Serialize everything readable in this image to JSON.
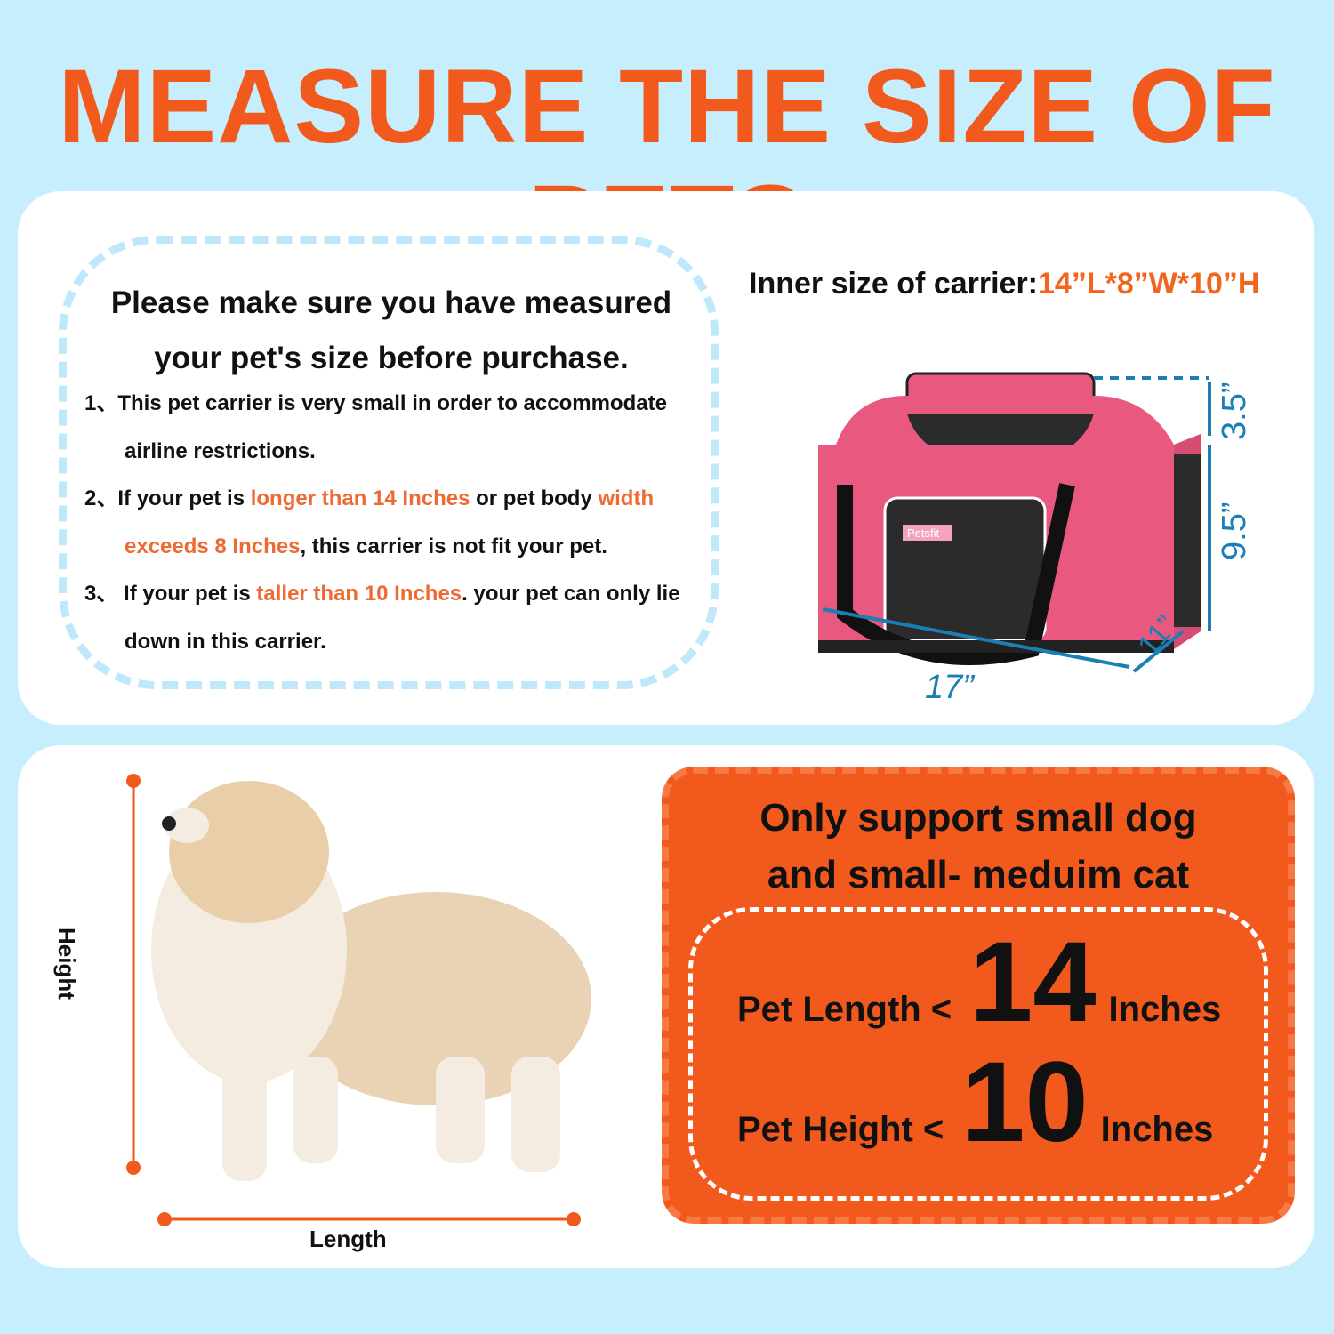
{
  "title": "MEASURE THE SIZE OF PETS",
  "notice": {
    "heading_line1": "Please make sure you have measured",
    "heading_line2": "your pet's size before purchase.",
    "items": [
      {
        "num": "1、",
        "a": "This pet carrier is very small in order  to accommodate",
        "b": "airline restrictions."
      },
      {
        "num": "2、",
        "a": "If your pet is ",
        "hl1": "longer than 14 Inches",
        "mid": " or pet body ",
        "hl2": "width",
        "hl3": "exceeds 8 Inches",
        "end": ", this carrier is not fit your pet."
      },
      {
        "num": "3、",
        "a": " If your pet is ",
        "hl1": "taller than 10 Inches",
        "end": ". your pet can only lie",
        "b": "down in this carrier."
      }
    ]
  },
  "carrier": {
    "inner_label": "Inner size of carrier:",
    "inner_size": "14”L*8”W*10”H",
    "dims": {
      "length": "17”",
      "width": "11”",
      "height": "9.5”",
      "top": "3.5”"
    },
    "brand": "Petsfit",
    "colors": {
      "body": "#e9587f",
      "mesh": "#2b2b2b",
      "dimension": "#1b7fb5"
    }
  },
  "dog": {
    "height_label": "Height",
    "length_label": "Length"
  },
  "support": {
    "line1": "Only support small dog",
    "line2": "and small- meduim cat",
    "length_label": "Pet Length <",
    "length_value": "14",
    "height_label": "Pet Height <",
    "height_value": "10",
    "unit": "Inches"
  },
  "colors": {
    "background": "#c6eefc",
    "accent": "#f25a1d",
    "dash": "#bfe9fb"
  }
}
